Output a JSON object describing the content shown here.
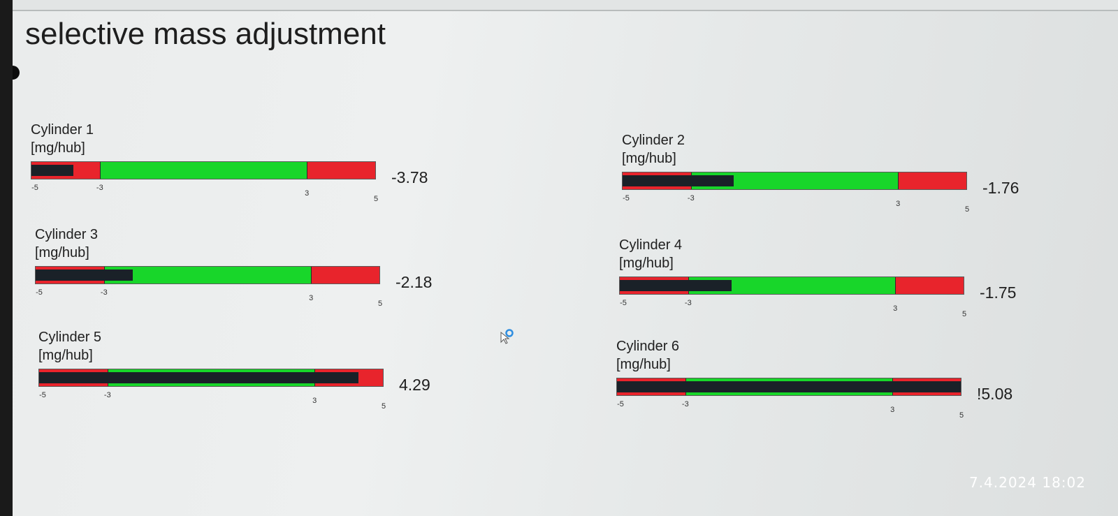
{
  "header": {
    "title": "selective mass adjustment"
  },
  "scale": {
    "min": -5,
    "max": 5,
    "green_low": -3,
    "green_high": 3,
    "ticks": [
      "-5",
      "-3",
      "3",
      "5"
    ],
    "colors": {
      "out_of_range": "#e8242c",
      "in_range": "#18d62a",
      "indicator": "#1a2128"
    }
  },
  "gauges": [
    {
      "name": "Cylinder 1",
      "unit": "[mg/hub]",
      "value": -3.78,
      "readout": "-3.78"
    },
    {
      "name": "Cylinder 2",
      "unit": "[mg/hub]",
      "value": -1.76,
      "readout": "-1.76"
    },
    {
      "name": "Cylinder 3",
      "unit": "[mg/hub]",
      "value": -2.18,
      "readout": "-2.18"
    },
    {
      "name": "Cylinder 4",
      "unit": "[mg/hub]",
      "value": -1.75,
      "readout": "-1.75"
    },
    {
      "name": "Cylinder 5",
      "unit": "[mg/hub]",
      "value": 4.29,
      "readout": "4.29"
    },
    {
      "name": "Cylinder 6",
      "unit": "[mg/hub]",
      "value": 5.08,
      "readout": "!5.08"
    }
  ],
  "icons": {
    "status": "status-dot-icon",
    "cursor": "mouse-cursor-icon"
  },
  "overlay": {
    "timestamp": "7.4.2024 18:02"
  }
}
